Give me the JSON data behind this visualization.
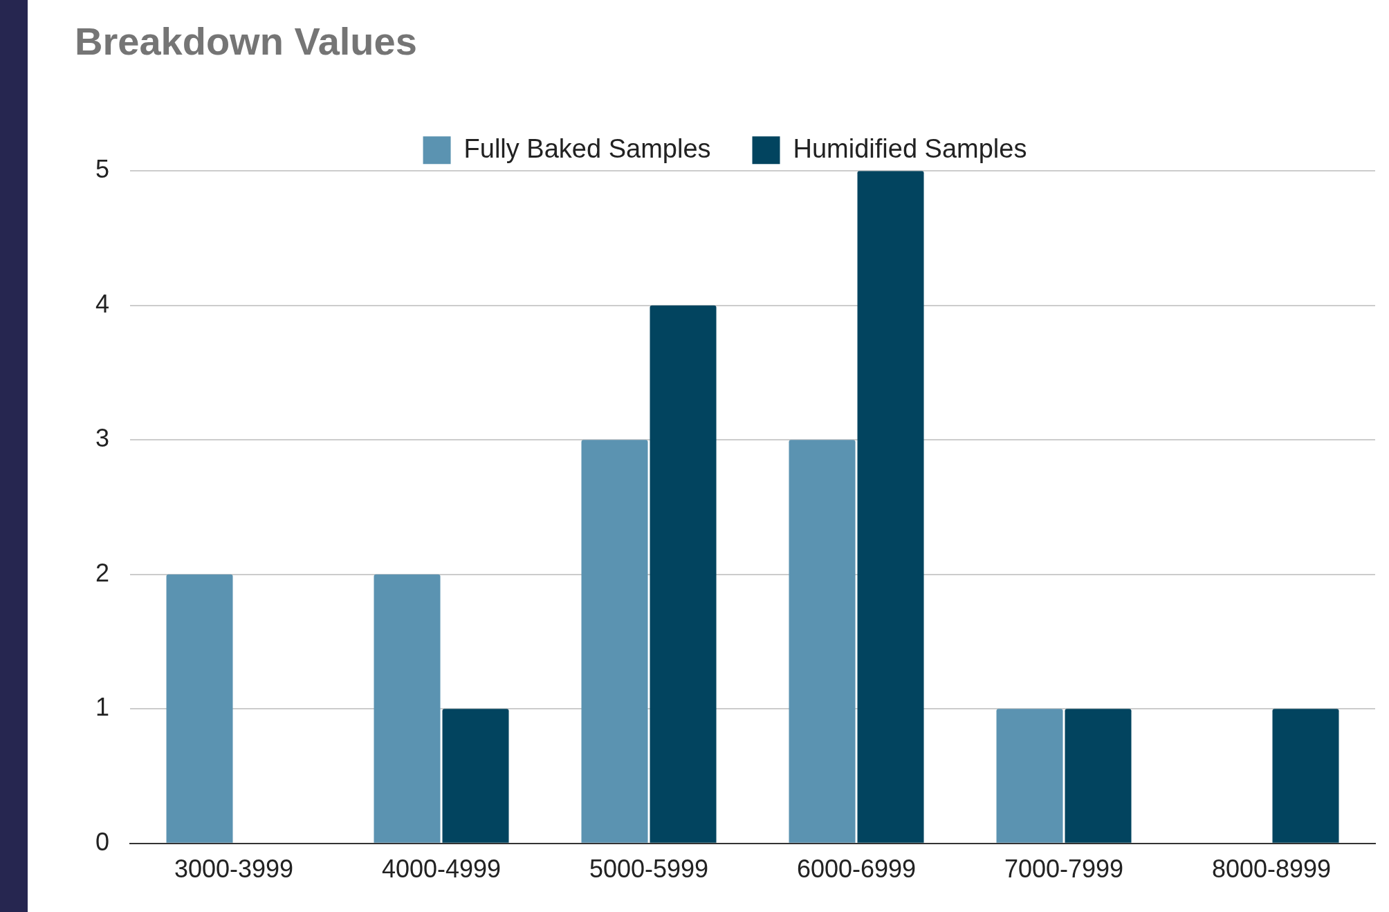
{
  "chart_data": {
    "type": "bar",
    "title": "Breakdown Values",
    "categories": [
      "3000-3999",
      "4000-4999",
      "5000-5999",
      "6000-6999",
      "7000-7999",
      "8000-8999"
    ],
    "series": [
      {
        "name": "Fully Baked Samples",
        "color": "#5b93b1",
        "values": [
          2,
          2,
          3,
          3,
          1,
          0
        ]
      },
      {
        "name": "Humidified Samples",
        "color": "#02445f",
        "values": [
          0,
          1,
          4,
          5,
          1,
          1
        ]
      }
    ],
    "ylim": [
      0,
      5
    ],
    "yticks": [
      0,
      1,
      2,
      3,
      4,
      5
    ],
    "grid": "y",
    "legend": "top"
  }
}
